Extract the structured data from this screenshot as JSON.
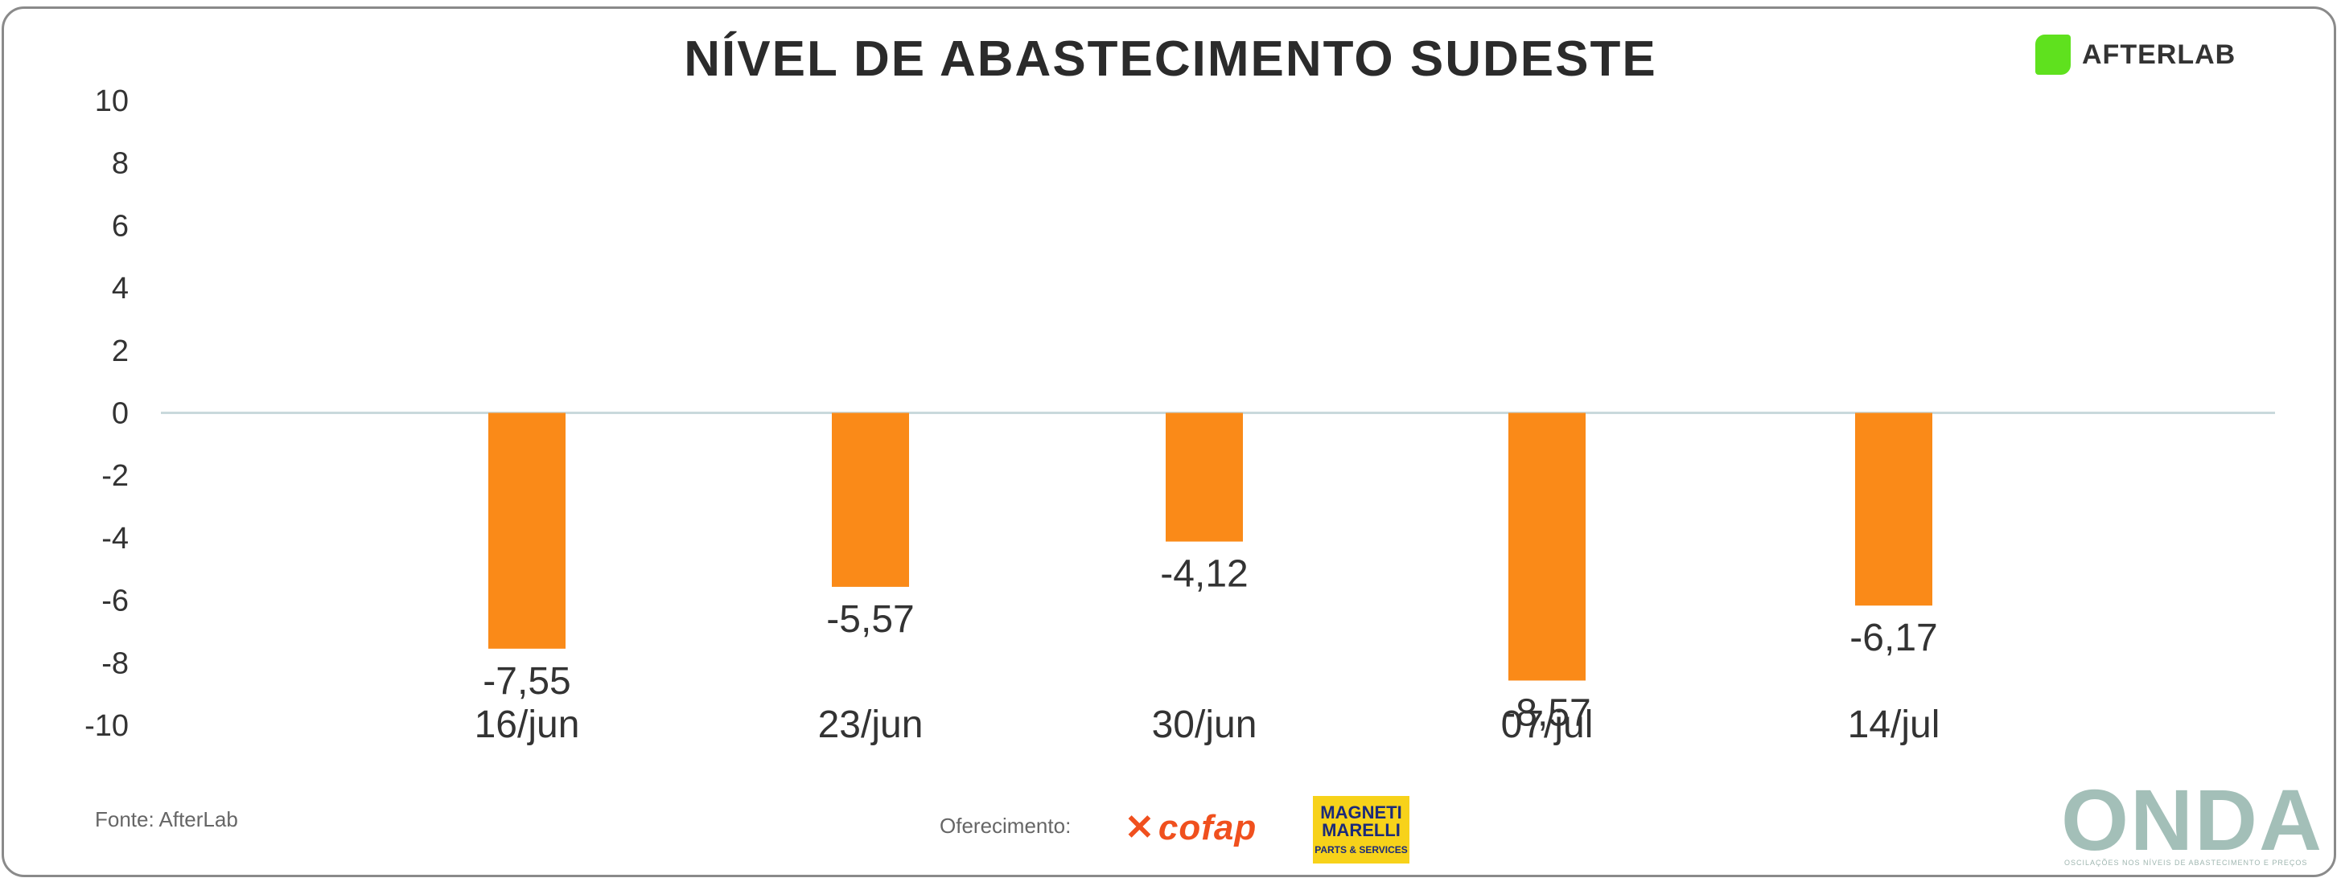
{
  "title": "NÍVEL DE ABASTECIMENTO SUDESTE",
  "brand": {
    "name": "AFTERLAB",
    "color": "#5fe11e"
  },
  "source": "Fonte: AfterLab",
  "sponsors": {
    "label": "Oferecimento:",
    "cofap": "cofap",
    "magneti_main": "MAGNETI MARELLI",
    "magneti_sub": "PARTS & SERVICES"
  },
  "footer_logo": {
    "name": "ONDA",
    "tagline": "OSCILAÇÕES NOS NÍVEIS DE ABASTECIMENTO E PREÇOS"
  },
  "chart_data": {
    "type": "bar",
    "title": "NÍVEL DE ABASTECIMENTO SUDESTE",
    "categories": [
      "16/jun",
      "23/jun",
      "30/jun",
      "07/jul",
      "14/jul"
    ],
    "values": [
      -7.55,
      -5.57,
      -4.12,
      -8.57,
      -6.17
    ],
    "value_labels": [
      "-7,55",
      "-5,57",
      "-4,12",
      "-8,57",
      "-6,17"
    ],
    "ylim": [
      -10,
      10
    ],
    "yticks": [
      -10,
      -8,
      -6,
      -4,
      -2,
      0,
      2,
      4,
      6,
      8,
      10
    ],
    "ytick_labels": [
      "-10",
      "-8",
      "-6",
      "-4",
      "-2",
      "0",
      "2",
      "4",
      "6",
      "8",
      "10"
    ],
    "bar_color": "#fa8a18",
    "grid": false,
    "legend": "none"
  }
}
